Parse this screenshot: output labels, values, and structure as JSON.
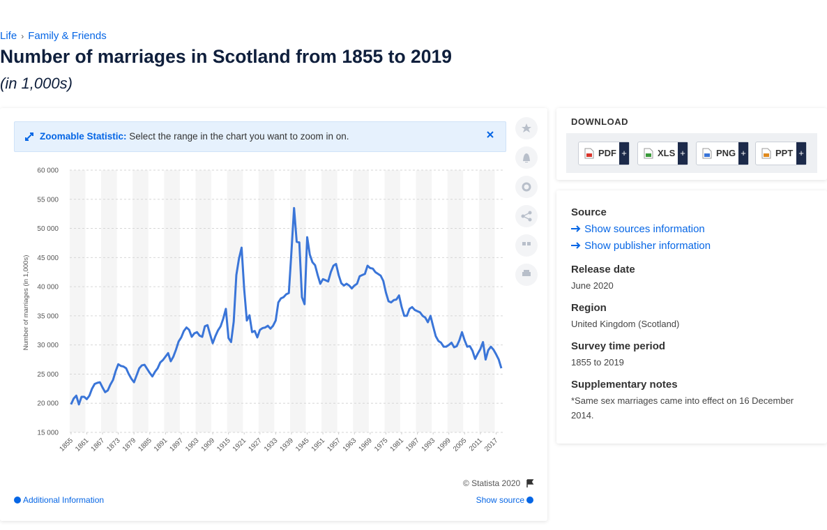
{
  "breadcrumb": [
    "Life",
    "Family & Friends"
  ],
  "header": {
    "title": "Number of marriages in Scotland from 1855 to 2019",
    "subtitle": "(in 1,000s)"
  },
  "zoom_banner": {
    "label": "Zoomable Statistic:",
    "text": "Select the range in the chart you want to zoom in on."
  },
  "chart_data": {
    "type": "line",
    "y_label": "Number of marriages (in 1,000s)",
    "color": "#3a75d8",
    "grid": true,
    "x": [
      1855,
      1856,
      1857,
      1858,
      1859,
      1860,
      1861,
      1862,
      1863,
      1864,
      1865,
      1866,
      1867,
      1868,
      1869,
      1870,
      1871,
      1872,
      1873,
      1874,
      1875,
      1876,
      1877,
      1878,
      1879,
      1880,
      1881,
      1882,
      1883,
      1884,
      1885,
      1886,
      1887,
      1888,
      1889,
      1890,
      1891,
      1892,
      1893,
      1894,
      1895,
      1896,
      1897,
      1898,
      1899,
      1900,
      1901,
      1902,
      1903,
      1904,
      1905,
      1906,
      1907,
      1908,
      1909,
      1910,
      1911,
      1912,
      1913,
      1914,
      1915,
      1916,
      1917,
      1918,
      1919,
      1920,
      1921,
      1922,
      1923,
      1924,
      1925,
      1926,
      1927,
      1928,
      1929,
      1930,
      1931,
      1932,
      1933,
      1934,
      1935,
      1936,
      1937,
      1938,
      1939,
      1940,
      1941,
      1942,
      1943,
      1944,
      1945,
      1946,
      1947,
      1948,
      1949,
      1950,
      1951,
      1952,
      1953,
      1954,
      1955,
      1956,
      1957,
      1958,
      1959,
      1960,
      1961,
      1962,
      1963,
      1964,
      1965,
      1966,
      1967,
      1968,
      1969,
      1970,
      1971,
      1972,
      1973,
      1974,
      1975,
      1976,
      1977,
      1978,
      1979,
      1980,
      1981,
      1982,
      1983,
      1984,
      1985,
      1986,
      1987,
      1988,
      1989,
      1990,
      1991,
      1992,
      1993,
      1994,
      1995,
      1996,
      1997,
      1998,
      1999,
      2000,
      2001,
      2002,
      2003,
      2004,
      2005,
      2006,
      2007,
      2008,
      2009,
      2010,
      2011,
      2012,
      2013,
      2014,
      2015,
      2016,
      2017,
      2018,
      2019
    ],
    "values": [
      19800,
      20800,
      21300,
      19800,
      21100,
      21100,
      20700,
      21300,
      22500,
      23300,
      23500,
      23600,
      22700,
      21900,
      22200,
      23200,
      24000,
      25500,
      26700,
      26400,
      26300,
      26000,
      25000,
      24200,
      23600,
      24800,
      26000,
      26500,
      26600,
      25900,
      25200,
      24600,
      25400,
      26000,
      27000,
      27400,
      28000,
      28600,
      27200,
      28000,
      29200,
      30600,
      31300,
      32400,
      33000,
      32600,
      31400,
      32000,
      32200,
      31600,
      31400,
      33200,
      33400,
      31800,
      30300,
      31500,
      32500,
      33200,
      34500,
      36200,
      31200,
      30500,
      34000,
      42000,
      44800,
      46700,
      39500,
      34200,
      35100,
      32200,
      32400,
      31300,
      32600,
      32900,
      33000,
      33300,
      32800,
      33300,
      34200,
      37300,
      38000,
      38200,
      38700,
      38900,
      46000,
      53500,
      47700,
      47600,
      38200,
      37000,
      48500,
      45500,
      44200,
      43700,
      42000,
      40500,
      41300,
      41100,
      40900,
      42500,
      43600,
      43900,
      42000,
      40600,
      40200,
      40500,
      40200,
      39700,
      40200,
      40500,
      41800,
      42000,
      42200,
      43600,
      43200,
      43100,
      42500,
      42200,
      41900,
      41000,
      39000,
      37500,
      37300,
      37700,
      37800,
      38500,
      36500,
      35000,
      35000,
      36200,
      36500,
      36000,
      35800,
      35600,
      35000,
      34700,
      33900,
      35000,
      33200,
      31500,
      30700,
      30400,
      29700,
      29700,
      30000,
      30400,
      29600,
      29800,
      30800,
      32200,
      30800,
      29700,
      29800,
      29000,
      27600,
      28500,
      29300,
      30500,
      27500,
      29100,
      29700,
      29200,
      28400,
      27500,
      26000
    ],
    "xlim": [
      1854.5,
      2019.8
    ],
    "xticks": [
      1855,
      1861,
      1867,
      1873,
      1879,
      1885,
      1891,
      1897,
      1903,
      1909,
      1915,
      1921,
      1927,
      1933,
      1939,
      1945,
      1951,
      1957,
      1963,
      1969,
      1975,
      1981,
      1987,
      1993,
      1999,
      2005,
      2011,
      2017
    ],
    "ylim": [
      15000,
      60000
    ],
    "yticks": [
      {
        "value": 15000,
        "label": "15 000"
      },
      {
        "value": 20000,
        "label": "20 000"
      },
      {
        "value": 25000,
        "label": "25 000"
      },
      {
        "value": 30000,
        "label": "30 000"
      },
      {
        "value": 35000,
        "label": "35 000"
      },
      {
        "value": 40000,
        "label": "40 000"
      },
      {
        "value": 45000,
        "label": "45 000"
      },
      {
        "value": 50000,
        "label": "50 000"
      },
      {
        "value": 55000,
        "label": "55 000"
      },
      {
        "value": 60000,
        "label": "60 000"
      }
    ]
  },
  "footer": {
    "copyright": "© Statista 2020",
    "additional": "Additional Information",
    "show_source": "Show source"
  },
  "download": {
    "title": "DOWNLOAD",
    "formats": [
      "PDF",
      "XLS",
      "PNG",
      "PPT"
    ],
    "plus": "+"
  },
  "details": {
    "source_heading": "Source",
    "links": [
      "Show sources information",
      "Show publisher information"
    ],
    "sections": [
      {
        "heading": "Release date",
        "text": "June 2020"
      },
      {
        "heading": "Region",
        "text": "United Kingdom (Scotland)"
      },
      {
        "heading": "Survey time period",
        "text": "1855 to 2019"
      },
      {
        "heading": "Supplementary notes",
        "text": "*Same sex marriages came into effect on 16 December 2014."
      }
    ]
  }
}
